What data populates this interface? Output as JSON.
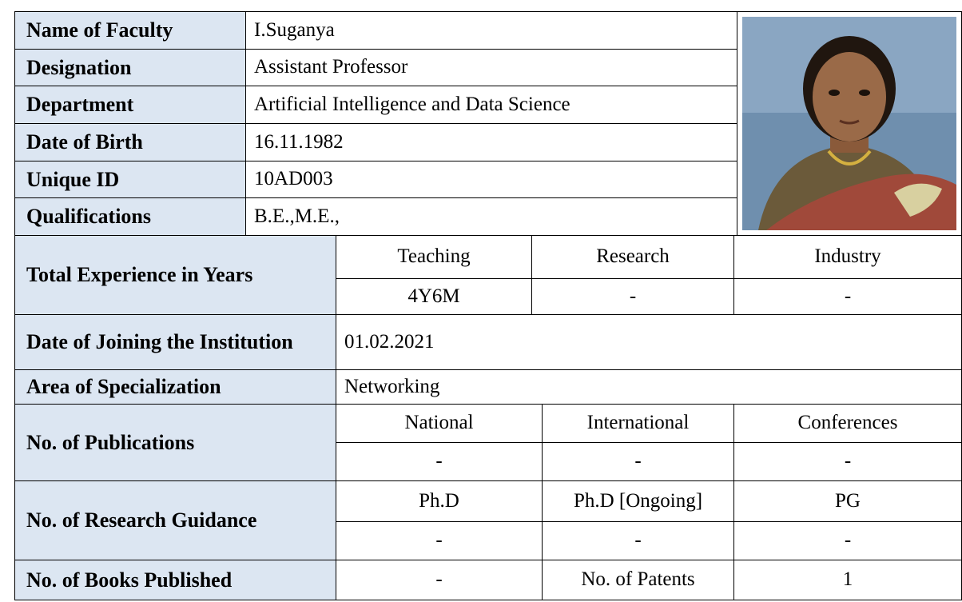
{
  "profile": {
    "rows": [
      {
        "label": "Name of Faculty",
        "value": "I.Suganya"
      },
      {
        "label": "Designation",
        "value": "Assistant Professor"
      },
      {
        "label": "Department",
        "value": "Artificial Intelligence and Data Science"
      },
      {
        "label": "Date of Birth",
        "value": "16.11.1982"
      },
      {
        "label": "Unique ID",
        "value": "10AD003"
      },
      {
        "label": "Qualifications",
        "value": "B.E.,M.E.,"
      }
    ]
  },
  "experience": {
    "label": "Total Experience in Years",
    "headers": [
      "Teaching",
      "Research",
      "Industry"
    ],
    "values": [
      "4Y6M",
      "-",
      "-"
    ]
  },
  "joining": {
    "label": "Date of Joining the Institution",
    "value": "01.02.2021"
  },
  "specialization": {
    "label": "Area of Specialization",
    "value": "Networking"
  },
  "publications": {
    "label": "No. of  Publications",
    "headers": [
      "National",
      "International",
      "Conferences"
    ],
    "values": [
      "-",
      "-",
      "-"
    ]
  },
  "research_guidance": {
    "label": "No. of Research Guidance",
    "headers": [
      "Ph.D",
      "Ph.D [Ongoing]",
      "PG"
    ],
    "values": [
      "-",
      "-",
      "-"
    ]
  },
  "books": {
    "label": "No. of Books Published",
    "value": "-",
    "patents_label": "No. of Patents",
    "patents_value": "1"
  }
}
